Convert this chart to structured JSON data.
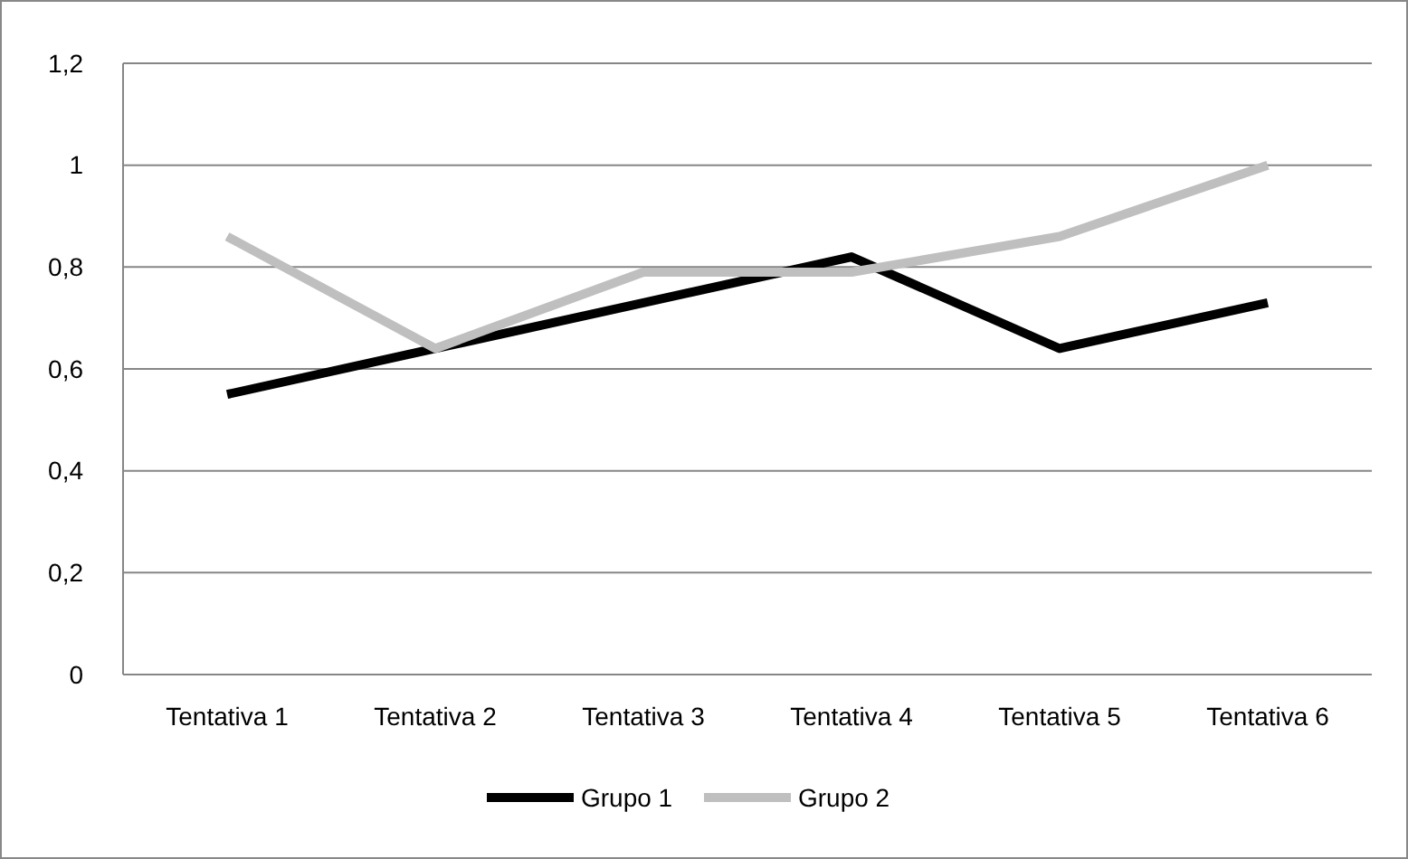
{
  "chart_data": {
    "type": "line",
    "categories": [
      "Tentativa 1",
      "Tentativa 2",
      "Tentativa 3",
      "Tentativa 4",
      "Tentativa 5",
      "Tentativa 6"
    ],
    "series": [
      {
        "name": "Grupo 1",
        "color": "#000000",
        "values": [
          0.55,
          0.64,
          0.73,
          0.82,
          0.64,
          0.73
        ]
      },
      {
        "name": "Grupo 2",
        "color": "#bfbfbf",
        "values": [
          0.86,
          0.64,
          0.79,
          0.79,
          0.86,
          1
        ]
      }
    ],
    "ylim": [
      0,
      1.2
    ],
    "yticks": [
      0,
      {
        "value": 0.2,
        "label": "0,2"
      },
      {
        "value": 0.4,
        "label": "0,4"
      },
      {
        "value": 0.6,
        "label": "0,6"
      },
      {
        "value": 0.8,
        "label": "0,8"
      },
      1,
      {
        "value": 1.2,
        "label": "1,2"
      }
    ],
    "grid": "y",
    "legend": "bottom",
    "marker": "none",
    "line_style": "solid"
  }
}
